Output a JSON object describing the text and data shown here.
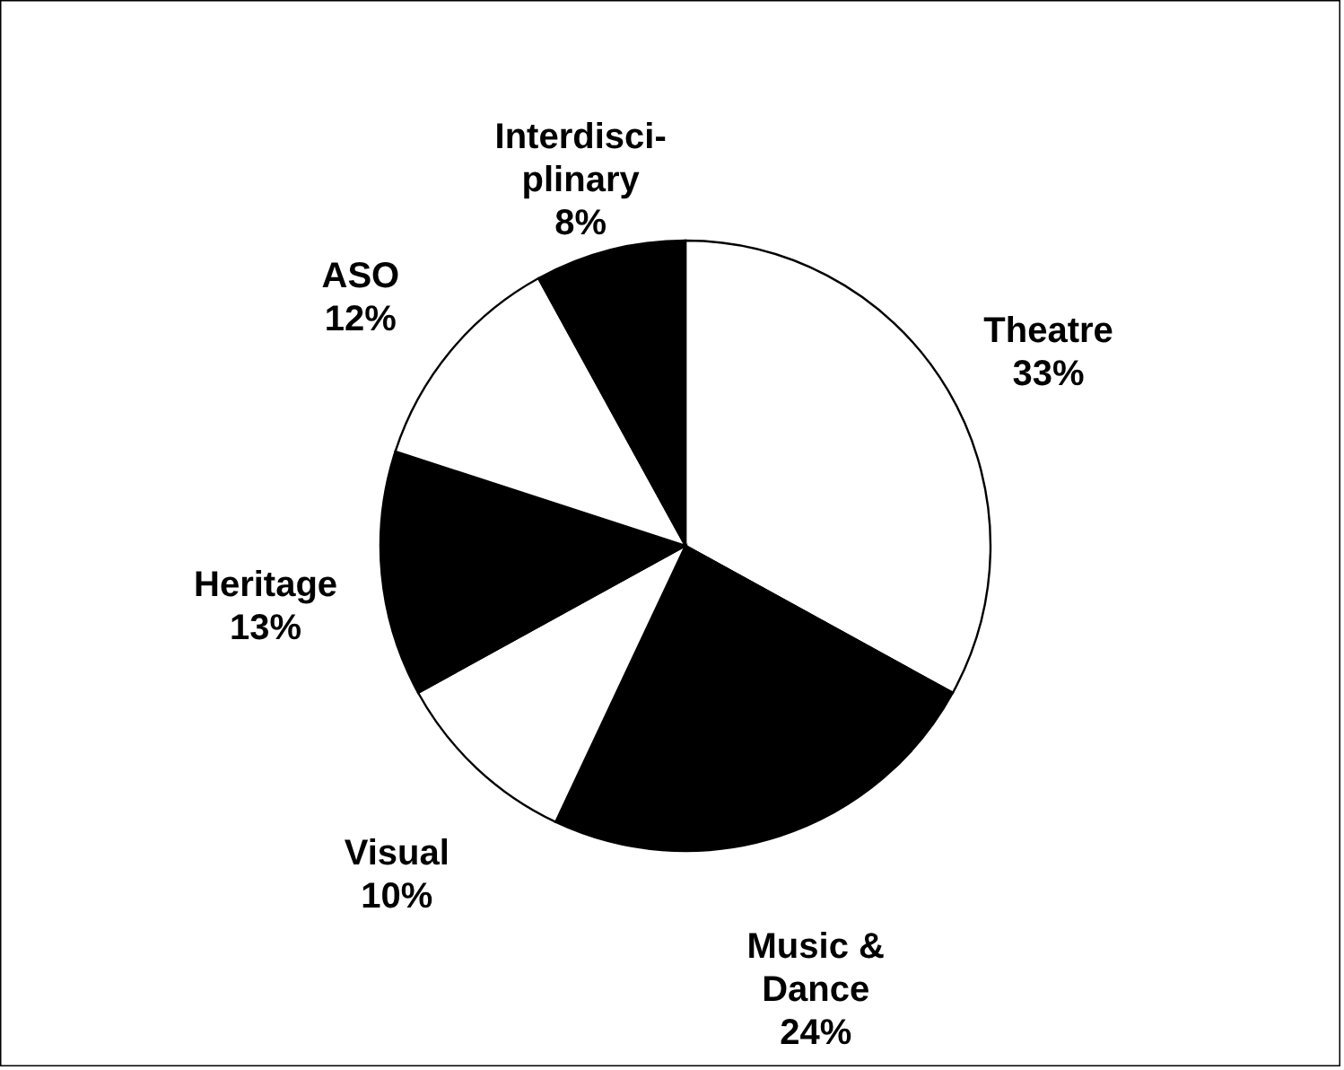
{
  "chart_data": {
    "type": "pie",
    "categories": [
      "Theatre",
      "Music &\nDance",
      "Visual",
      "Heritage",
      "ASO",
      "Interdisci-\nplinary"
    ],
    "values": [
      33,
      24,
      10,
      13,
      12,
      8
    ],
    "colors": [
      "#ffffff",
      "#000000",
      "#ffffff",
      "#000000",
      "#ffffff",
      "#000000"
    ],
    "value_labels": [
      "33%",
      "24%",
      "10%",
      "13%",
      "12%",
      "8%"
    ]
  }
}
